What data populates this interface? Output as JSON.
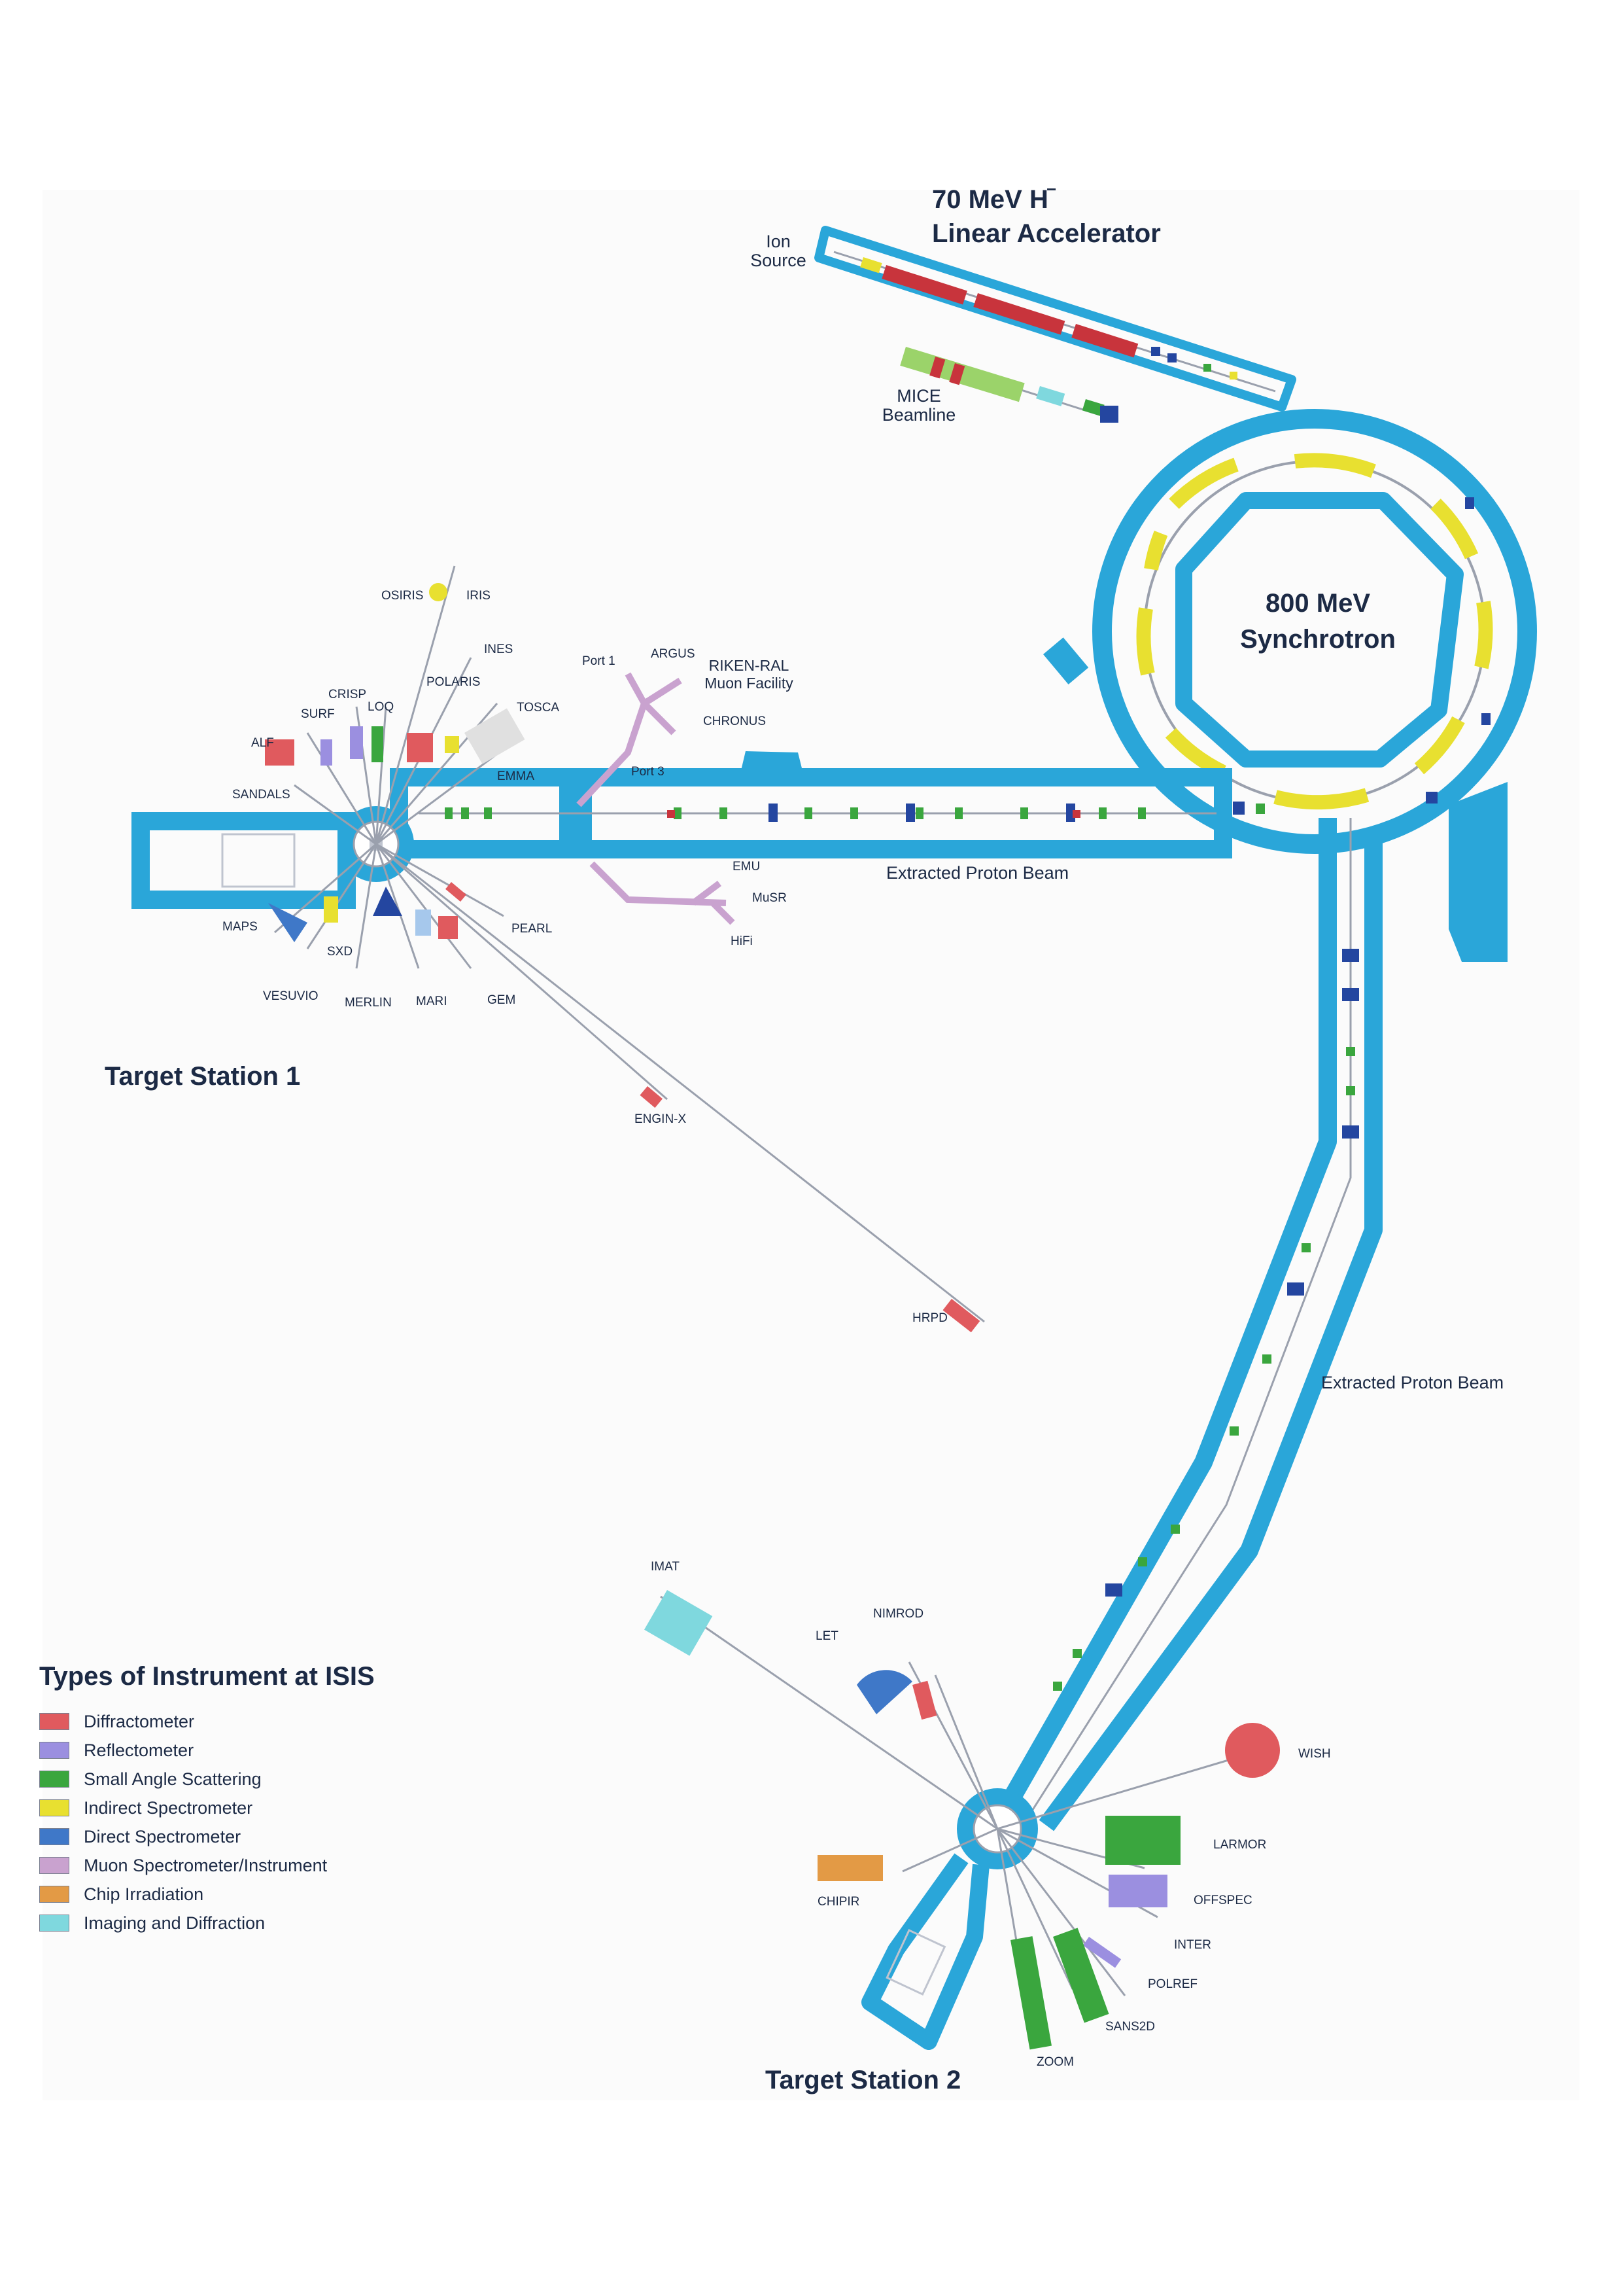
{
  "titles": {
    "linac_line1": "70 MeV H",
    "linac_sup": "−",
    "linac_line2": "Linear Accelerator",
    "synchrotron_line1": "800 MeV",
    "synchrotron_line2": "Synchrotron",
    "ion_source_1": "Ion",
    "ion_source_2": "Source",
    "mice_1": "MICE",
    "mice_2": "Beamline",
    "riken_1": "RIKEN-RAL",
    "riken_2": "Muon Facility",
    "epb_1": "Extracted Proton Beam",
    "epb_2": "Extracted Proton Beam",
    "ts1": "Target Station 1",
    "ts2": "Target Station 2"
  },
  "instruments": {
    "osiris": "OSIRIS",
    "iris": "IRIS",
    "ines": "INES",
    "polaris": "POLARIS",
    "tosca": "TOSCA",
    "crisp": "CRISP",
    "surf": "SURF",
    "loq": "LOQ",
    "alf": "ALF",
    "emma": "EMMA",
    "sandals": "SANDALS",
    "maps": "MAPS",
    "sxd": "SXD",
    "vesuvio": "VESUVIO",
    "merlin": "MERLIN",
    "mari": "MARI",
    "gem": "GEM",
    "pearl": "PEARL",
    "engin_x": "ENGIN-X",
    "hrpd": "HRPD",
    "port1": "Port 1",
    "argus": "ARGUS",
    "chronus": "CHRONUS",
    "port3": "Port 3",
    "emu": "EMU",
    "musr": "MuSR",
    "hifi": "HiFi",
    "imat": "IMAT",
    "nimrod": "NIMROD",
    "let": "LET",
    "wish": "WISH",
    "larmor": "LARMOR",
    "offspec": "OFFSPEC",
    "inter": "INTER",
    "polref": "POLREF",
    "sans2d": "SANS2D",
    "zoom": "ZOOM",
    "chipir": "CHIPIR"
  },
  "legend": {
    "title": "Types of Instrument at ISIS",
    "items": [
      {
        "label": "Diffractometer",
        "color": "#e05a5e"
      },
      {
        "label": "Reflectometer",
        "color": "#9b8fe0"
      },
      {
        "label": "Small Angle Scattering",
        "color": "#3aa63e"
      },
      {
        "label": "Indirect Spectrometer",
        "color": "#e8e030"
      },
      {
        "label": "Direct Spectrometer",
        "color": "#3f78c8"
      },
      {
        "label": "Muon Spectrometer/Instrument",
        "color": "#c9a2cf"
      },
      {
        "label": "Chip Irradiation",
        "color": "#e39a45"
      },
      {
        "label": "Imaging and Diffraction",
        "color": "#7fd8de"
      }
    ]
  },
  "colors": {
    "tunnel": "#2aa6d9",
    "label": "#1c2a45",
    "magnet_green": "#3aa63e",
    "magnet_blue": "#2446a0",
    "linac_red": "#c8343c"
  }
}
